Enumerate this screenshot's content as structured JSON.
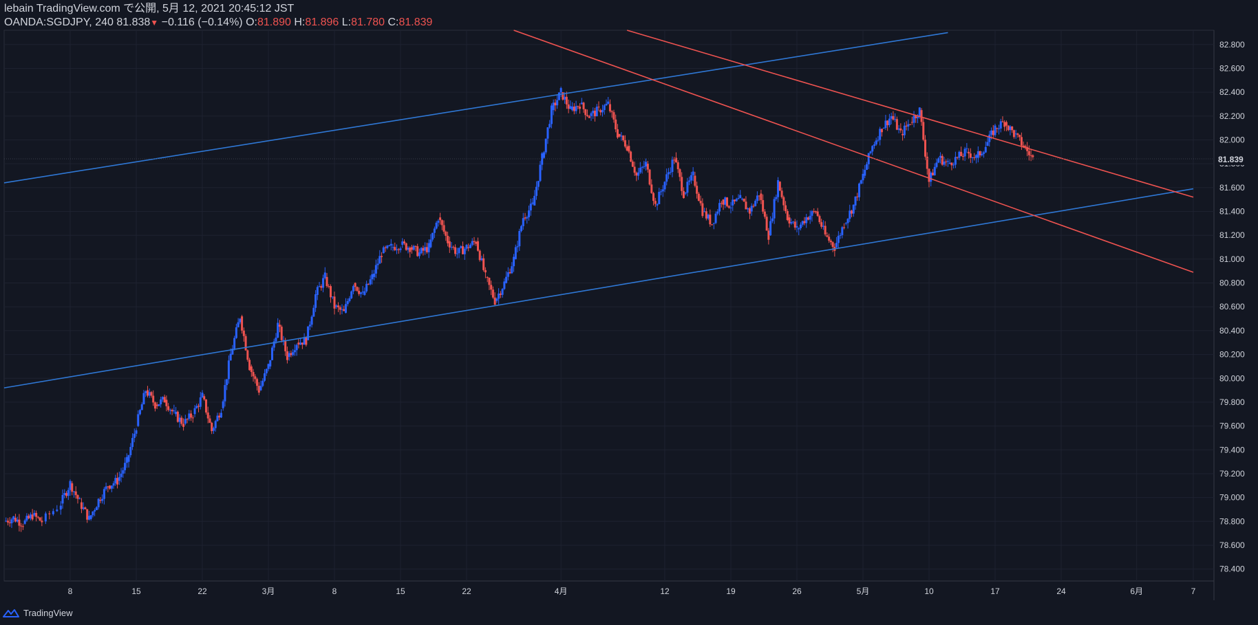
{
  "header": {
    "publish_line": "lebain TradingView.com で公開, 5月 12, 2021 20:45:12 JST",
    "symbol": "OANDA:SGDJPY, 240",
    "last": "81.838",
    "change": "−0.116 (−0.14%)",
    "o_label": "O:",
    "o_value": "81.890",
    "h_label": "H:",
    "h_value": "81.896",
    "l_label": "L:",
    "l_value": "81.780",
    "c_label": "C:",
    "c_value": "81.839"
  },
  "footer": {
    "brand": "TradingView",
    "logo_icon": "tradingview-logo-icon"
  },
  "price_tag": "81.839",
  "colors": {
    "background": "#131722",
    "up": "#2962ff",
    "down": "#ef5350",
    "trend_blue": "#2f78d6",
    "trend_red": "#ef5350",
    "grid": "#1e2230"
  },
  "chart_data": {
    "type": "candlestick",
    "instrument": "OANDA:SGDJPY",
    "interval": "240",
    "ylim": [
      78.3,
      82.92
    ],
    "y_ticks": [
      "82.800",
      "82.600",
      "82.400",
      "82.200",
      "82.000",
      "81.800",
      "81.600",
      "81.400",
      "81.200",
      "81.000",
      "80.800",
      "80.600",
      "80.400",
      "80.200",
      "80.000",
      "79.800",
      "79.600",
      "79.400",
      "79.200",
      "79.000",
      "78.800",
      "78.600",
      "78.400"
    ],
    "xlim": [
      "2021-02-01",
      "2021-06-07"
    ],
    "x_ticks": [
      {
        "date": "2021-02-08",
        "label": "8"
      },
      {
        "date": "2021-02-15",
        "label": "15"
      },
      {
        "date": "2021-02-22",
        "label": "22"
      },
      {
        "date": "2021-03-01",
        "label": "3月"
      },
      {
        "date": "2021-03-08",
        "label": "8"
      },
      {
        "date": "2021-03-15",
        "label": "15"
      },
      {
        "date": "2021-03-22",
        "label": "22"
      },
      {
        "date": "2021-04-01",
        "label": "4月"
      },
      {
        "date": "2021-04-12",
        "label": "12"
      },
      {
        "date": "2021-04-19",
        "label": "19"
      },
      {
        "date": "2021-04-26",
        "label": "26"
      },
      {
        "date": "2021-05-03",
        "label": "5月"
      },
      {
        "date": "2021-05-10",
        "label": "10"
      },
      {
        "date": "2021-05-17",
        "label": "17"
      },
      {
        "date": "2021-05-24",
        "label": "24"
      },
      {
        "date": "2021-06-01",
        "label": "6月"
      },
      {
        "date": "2021-06-07",
        "label": "7"
      }
    ],
    "price_path": [
      [
        "2021-02-01",
        78.8
      ],
      [
        "2021-02-02",
        78.83
      ],
      [
        "2021-02-03",
        78.78
      ],
      [
        "2021-02-04",
        78.85
      ],
      [
        "2021-02-05",
        78.8
      ],
      [
        "2021-02-07",
        78.95
      ],
      [
        "2021-02-08",
        79.12
      ],
      [
        "2021-02-09",
        78.96
      ],
      [
        "2021-02-10",
        78.82
      ],
      [
        "2021-02-11",
        78.98
      ],
      [
        "2021-02-12",
        79.1
      ],
      [
        "2021-02-13",
        79.14
      ],
      [
        "2021-02-14",
        79.3
      ],
      [
        "2021-02-15",
        79.6
      ],
      [
        "2021-02-16",
        79.9
      ],
      [
        "2021-02-17",
        79.78
      ],
      [
        "2021-02-18",
        79.82
      ],
      [
        "2021-02-19",
        79.7
      ],
      [
        "2021-02-20",
        79.62
      ],
      [
        "2021-02-21",
        79.7
      ],
      [
        "2021-02-22",
        79.85
      ],
      [
        "2021-02-23",
        79.56
      ],
      [
        "2021-02-24",
        79.75
      ],
      [
        "2021-02-25",
        80.2
      ],
      [
        "2021-02-26",
        80.52
      ],
      [
        "2021-02-27",
        80.1
      ],
      [
        "2021-02-28",
        79.9
      ],
      [
        "2021-03-01",
        80.1
      ],
      [
        "2021-03-02",
        80.45
      ],
      [
        "2021-03-03",
        80.18
      ],
      [
        "2021-03-04",
        80.3
      ],
      [
        "2021-03-05",
        80.32
      ],
      [
        "2021-03-06",
        80.7
      ],
      [
        "2021-03-07",
        80.85
      ],
      [
        "2021-03-08",
        80.6
      ],
      [
        "2021-03-09",
        80.55
      ],
      [
        "2021-03-10",
        80.8
      ],
      [
        "2021-03-11",
        80.7
      ],
      [
        "2021-03-12",
        80.85
      ],
      [
        "2021-03-13",
        81.05
      ],
      [
        "2021-03-14",
        81.1
      ],
      [
        "2021-03-15",
        81.12
      ],
      [
        "2021-03-16",
        81.1
      ],
      [
        "2021-03-17",
        81.05
      ],
      [
        "2021-03-18",
        81.1
      ],
      [
        "2021-03-19",
        81.35
      ],
      [
        "2021-03-20",
        81.15
      ],
      [
        "2021-03-21",
        81.05
      ],
      [
        "2021-03-22",
        81.1
      ],
      [
        "2021-03-23",
        81.15
      ],
      [
        "2021-03-24",
        80.85
      ],
      [
        "2021-03-25",
        80.65
      ],
      [
        "2021-03-26",
        80.8
      ],
      [
        "2021-03-27",
        81.0
      ],
      [
        "2021-03-28",
        81.35
      ],
      [
        "2021-03-29",
        81.45
      ],
      [
        "2021-03-30",
        81.85
      ],
      [
        "2021-03-31",
        82.25
      ],
      [
        "2021-04-01",
        82.4
      ],
      [
        "2021-04-02",
        82.25
      ],
      [
        "2021-04-03",
        82.3
      ],
      [
        "2021-04-04",
        82.2
      ],
      [
        "2021-04-05",
        82.25
      ],
      [
        "2021-04-06",
        82.3
      ],
      [
        "2021-04-07",
        82.05
      ],
      [
        "2021-04-08",
        81.95
      ],
      [
        "2021-04-09",
        81.7
      ],
      [
        "2021-04-10",
        81.8
      ],
      [
        "2021-04-11",
        81.45
      ],
      [
        "2021-04-12",
        81.65
      ],
      [
        "2021-04-13",
        81.85
      ],
      [
        "2021-04-14",
        81.55
      ],
      [
        "2021-04-15",
        81.7
      ],
      [
        "2021-04-16",
        81.4
      ],
      [
        "2021-04-17",
        81.3
      ],
      [
        "2021-04-18",
        81.5
      ],
      [
        "2021-04-19",
        81.45
      ],
      [
        "2021-04-20",
        81.5
      ],
      [
        "2021-04-21",
        81.4
      ],
      [
        "2021-04-22",
        81.55
      ],
      [
        "2021-04-23",
        81.2
      ],
      [
        "2021-04-24",
        81.65
      ],
      [
        "2021-04-25",
        81.35
      ],
      [
        "2021-04-26",
        81.25
      ],
      [
        "2021-04-27",
        81.35
      ],
      [
        "2021-04-28",
        81.4
      ],
      [
        "2021-04-29",
        81.2
      ],
      [
        "2021-04-30",
        81.1
      ],
      [
        "2021-05-01",
        81.3
      ],
      [
        "2021-05-02",
        81.45
      ],
      [
        "2021-05-03",
        81.7
      ],
      [
        "2021-05-04",
        81.95
      ],
      [
        "2021-05-05",
        82.1
      ],
      [
        "2021-05-06",
        82.2
      ],
      [
        "2021-05-07",
        82.05
      ],
      [
        "2021-05-08",
        82.15
      ],
      [
        "2021-05-09",
        82.25
      ],
      [
        "2021-05-10",
        81.65
      ],
      [
        "2021-05-11",
        81.85
      ],
      [
        "2021-05-12",
        81.8
      ],
      [
        "2021-05-13",
        81.85
      ],
      [
        "2021-05-14",
        81.9
      ],
      [
        "2021-05-15",
        81.85
      ],
      [
        "2021-05-16",
        81.95
      ],
      [
        "2021-05-17",
        82.1
      ],
      [
        "2021-05-18",
        82.15
      ],
      [
        "2021-05-19",
        82.05
      ],
      [
        "2021-05-20",
        81.95
      ],
      [
        "2021-05-21",
        81.84
      ]
    ],
    "price_path_note": "approximate 4h price trajectory; dates here are indices along the visible session axis",
    "trendlines": [
      {
        "color": "blue",
        "from": [
          "2021-02-01",
          81.64
        ],
        "to": [
          "2021-05-12",
          82.9
        ]
      },
      {
        "color": "blue",
        "from": [
          "2021-02-01",
          79.92
        ],
        "to": [
          "2021-06-07",
          81.59
        ]
      },
      {
        "color": "red",
        "from": [
          "2021-03-27",
          82.92
        ],
        "to": [
          "2021-06-07",
          80.89
        ]
      },
      {
        "color": "red",
        "from": [
          "2021-04-08",
          82.92
        ],
        "to": [
          "2021-06-07",
          81.52
        ]
      }
    ]
  }
}
